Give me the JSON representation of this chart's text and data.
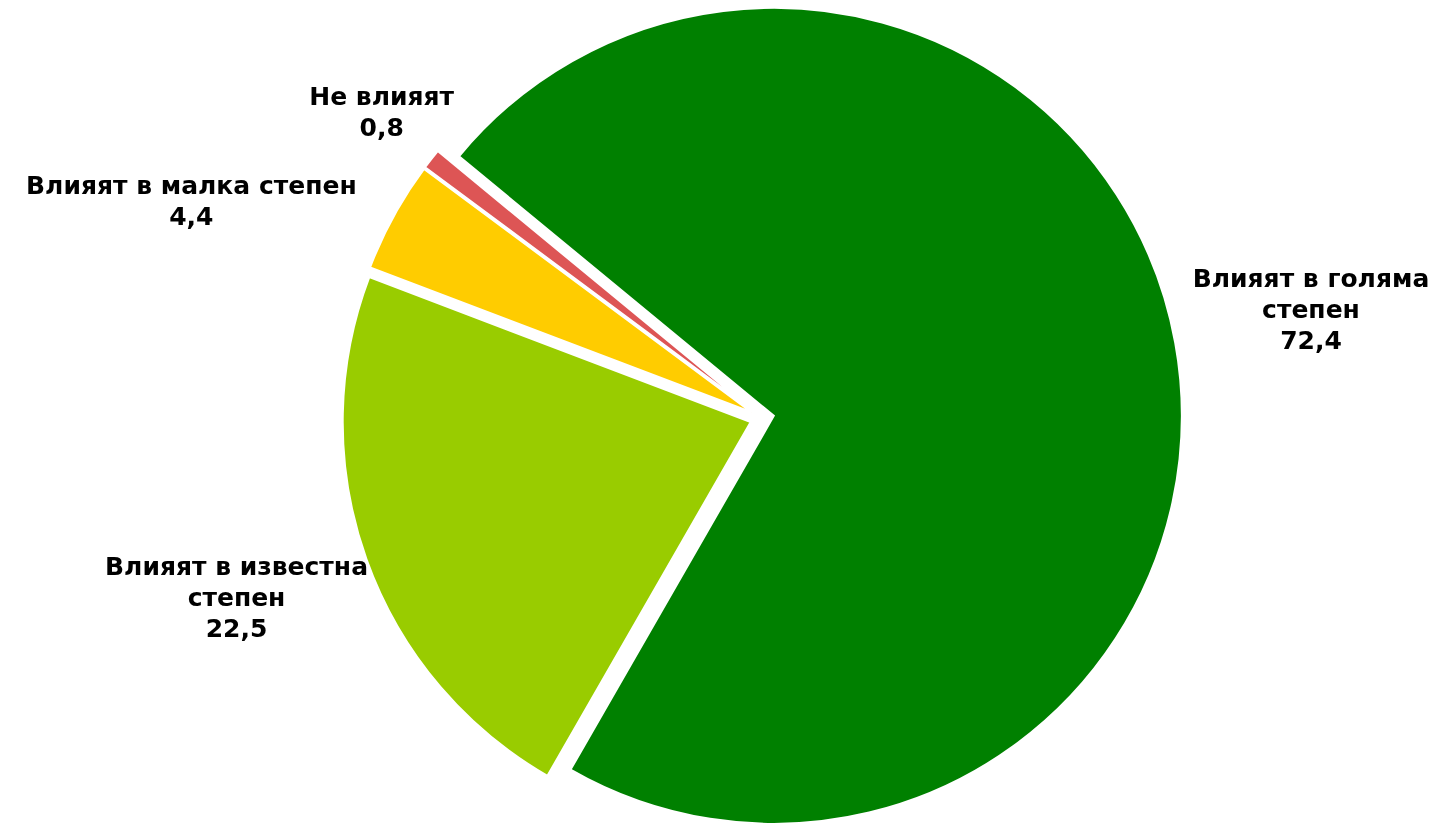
{
  "chart_data": {
    "type": "pie",
    "categories": [
      "Влияят в голяма степен",
      "Влияят в известна степен",
      "Влияят в малка степен",
      "Не влияят"
    ],
    "values": [
      72.4,
      22.5,
      4.4,
      0.8
    ],
    "value_labels": [
      "72,4",
      "22,5",
      "4,4",
      "0,8"
    ],
    "colors": [
      "#008000",
      "#99cc00",
      "#ffcc00",
      "#dd5555"
    ]
  }
}
